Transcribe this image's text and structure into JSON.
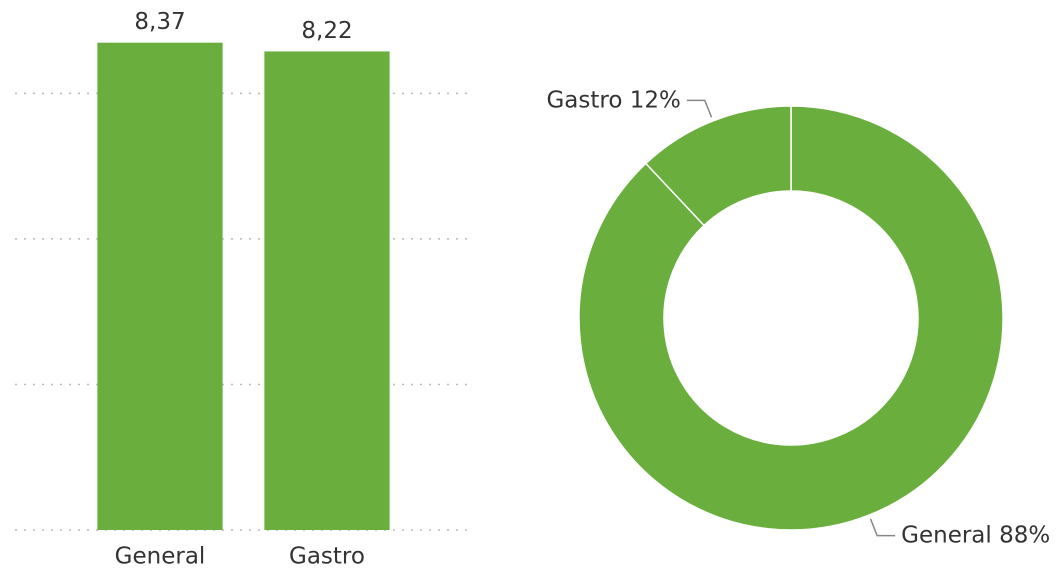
{
  "chart_data": [
    {
      "type": "bar",
      "categories": [
        "General",
        "Gastro"
      ],
      "values": [
        8.37,
        8.22
      ],
      "value_labels": [
        "8,37",
        "8,22"
      ],
      "color": "#6aaf3d",
      "ylim": [
        0,
        9
      ],
      "yticks": [
        0,
        2.5,
        5,
        7.5
      ],
      "grid": true
    },
    {
      "type": "donut",
      "categories": [
        "General",
        "Gastro"
      ],
      "values": [
        88,
        12
      ],
      "value_labels": [
        "88%",
        "12%"
      ],
      "color": "#6aaf3d"
    }
  ]
}
